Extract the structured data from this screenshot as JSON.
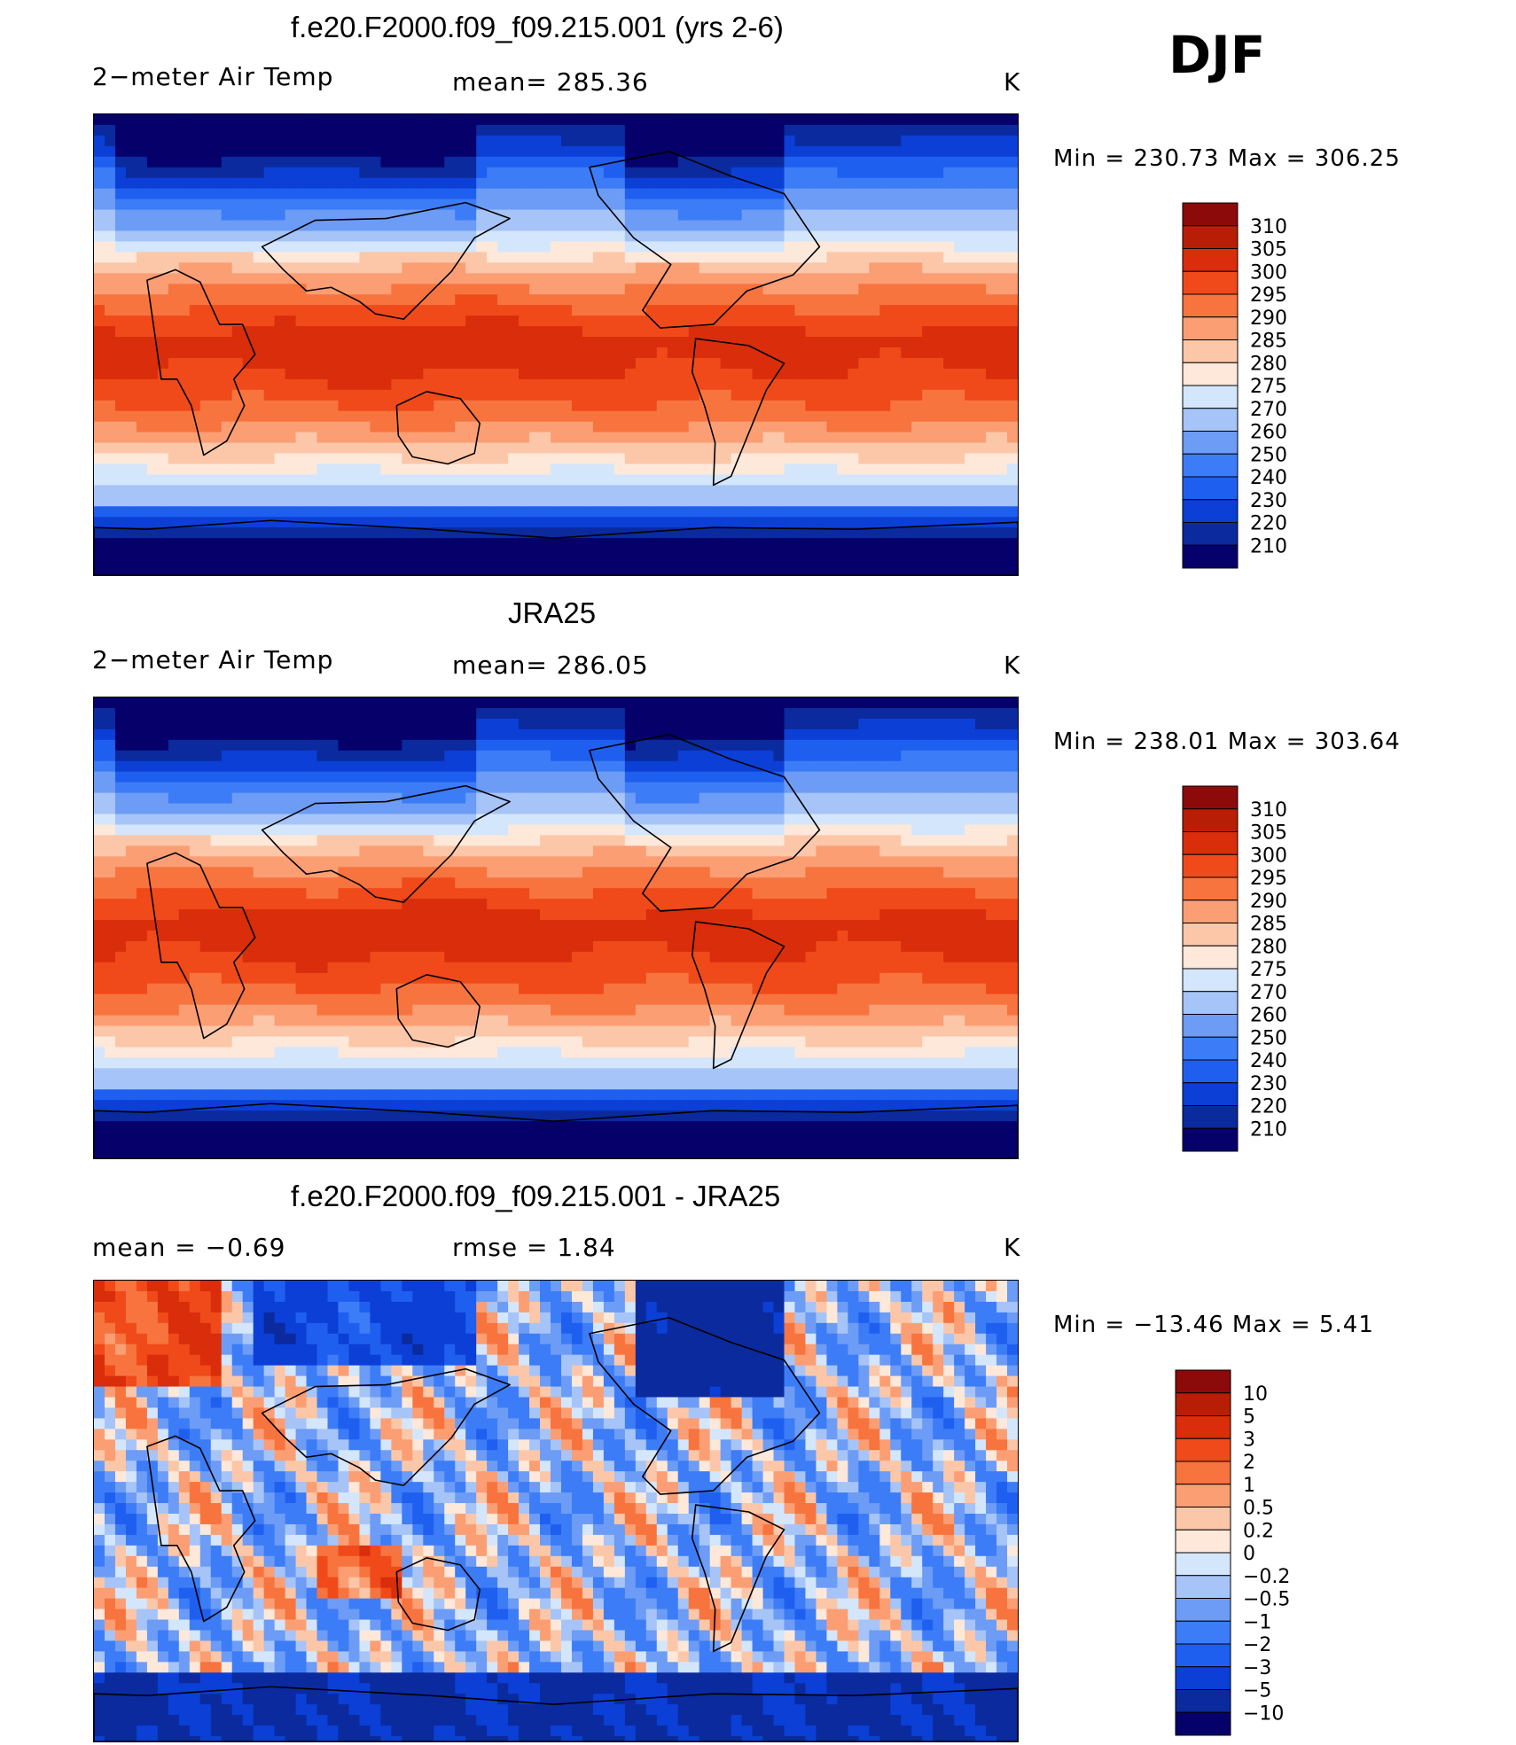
{
  "season": "DJF",
  "panels": [
    {
      "title": "f.e20.F2000.f09_f09.215.001 (yrs 2-6)",
      "left_label": "2−meter Air Temp",
      "center_label": "mean= 285.36",
      "right_label": "K",
      "minmax": "Min = 230.73 Max = 306.25",
      "colorbar_ticks": [
        "310",
        "305",
        "300",
        "295",
        "290",
        "285",
        "280",
        "275",
        "270",
        "260",
        "250",
        "240",
        "230",
        "220",
        "210"
      ]
    },
    {
      "title": "JRA25",
      "left_label": "2−meter Air Temp",
      "center_label": "mean= 286.05",
      "right_label": "K",
      "minmax": "Min = 238.01 Max = 303.64",
      "colorbar_ticks": [
        "310",
        "305",
        "300",
        "295",
        "290",
        "285",
        "280",
        "275",
        "270",
        "260",
        "250",
        "240",
        "230",
        "220",
        "210"
      ]
    },
    {
      "title": "f.e20.F2000.f09_f09.215.001 - JRA25",
      "left_label": "mean = −0.69",
      "center_label": "rmse = 1.84",
      "right_label": "K",
      "minmax": "Min = −13.46 Max = 5.41",
      "colorbar_ticks": [
        "10",
        "5",
        "3",
        "2",
        "1",
        "0.5",
        "0.2",
        "0",
        "−0.2",
        "−0.5",
        "−1",
        "−2",
        "−3",
        "−5",
        "−10"
      ]
    }
  ],
  "chart_data": [
    {
      "type": "heatmap",
      "title": "f.e20.F2000.f09_f09.215.001 (yrs 2-6)",
      "variable": "2−meter Air Temp",
      "units": "K",
      "mean": 285.36,
      "min": 230.73,
      "max": 306.25,
      "contour_levels": [
        210,
        220,
        230,
        240,
        250,
        260,
        270,
        275,
        280,
        285,
        290,
        295,
        300,
        305,
        310
      ],
      "colors": [
        "#06006b",
        "#0a2a9e",
        "#0b3fd6",
        "#1f5ff0",
        "#3d7cf7",
        "#6c9cf5",
        "#a6c4f7",
        "#d4e6fb",
        "#fde8da",
        "#fcc7a8",
        "#fb9e74",
        "#f7743f",
        "#f04a1a",
        "#d92d0b",
        "#b81e05",
        "#8c0a0a"
      ]
    },
    {
      "type": "heatmap",
      "title": "JRA25",
      "variable": "2−meter Air Temp",
      "units": "K",
      "mean": 286.05,
      "min": 238.01,
      "max": 303.64,
      "contour_levels": [
        210,
        220,
        230,
        240,
        250,
        260,
        270,
        275,
        280,
        285,
        290,
        295,
        300,
        305,
        310
      ],
      "colors": [
        "#06006b",
        "#0a2a9e",
        "#0b3fd6",
        "#1f5ff0",
        "#3d7cf7",
        "#6c9cf5",
        "#a6c4f7",
        "#d4e6fb",
        "#fde8da",
        "#fcc7a8",
        "#fb9e74",
        "#f7743f",
        "#f04a1a",
        "#d92d0b",
        "#b81e05",
        "#8c0a0a"
      ]
    },
    {
      "type": "heatmap",
      "title": "f.e20.F2000.f09_f09.215.001 - JRA25",
      "units": "K",
      "mean": -0.69,
      "rmse": 1.84,
      "min": -13.46,
      "max": 5.41,
      "contour_levels": [
        -10,
        -5,
        -3,
        -2,
        -1,
        -0.5,
        -0.2,
        0,
        0.2,
        0.5,
        1,
        2,
        3,
        5,
        10
      ],
      "colors": [
        "#06006b",
        "#0a2a9e",
        "#0b3fd6",
        "#1f5ff0",
        "#3d7cf7",
        "#6c9cf5",
        "#a6c4f7",
        "#d4e6fb",
        "#fde8da",
        "#fcc7a8",
        "#fb9e74",
        "#f7743f",
        "#f04a1a",
        "#d92d0b",
        "#b81e05",
        "#8c0a0a"
      ]
    }
  ]
}
